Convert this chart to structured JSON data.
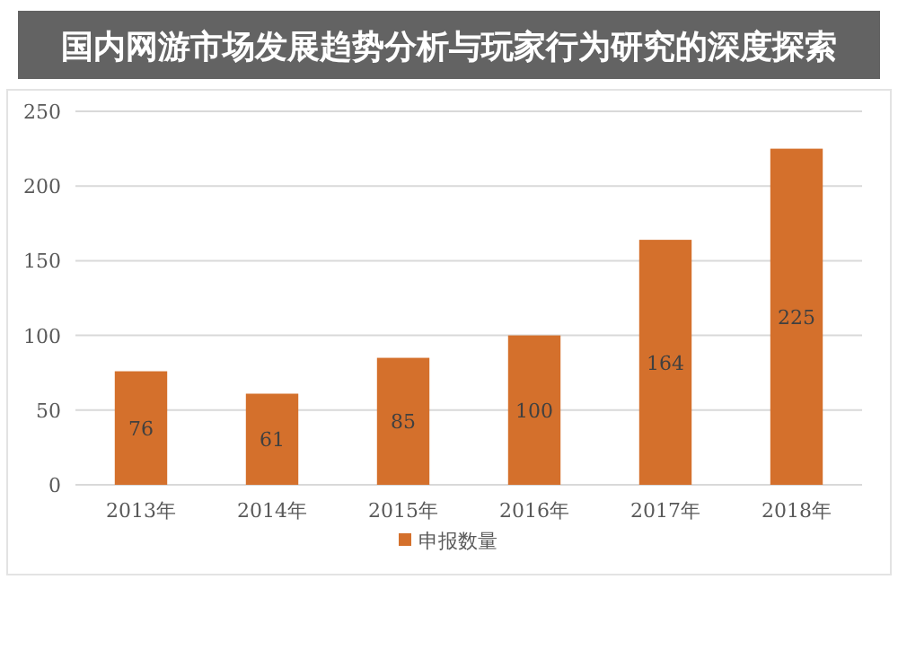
{
  "chart_data": {
    "type": "bar",
    "title": "国内网游市场发展趋势分析与玩家行为研究的深度探索",
    "categories": [
      "2013年",
      "2014年",
      "2015年",
      "2016年",
      "2017年",
      "2018年"
    ],
    "series": [
      {
        "name": "申报数量",
        "color": "#d4702c",
        "values": [
          76,
          61,
          85,
          100,
          164,
          225
        ]
      }
    ],
    "ylim": [
      0,
      250
    ],
    "yticks": [
      0,
      50,
      100,
      150,
      200,
      250
    ],
    "grid": "y",
    "legend": "bottom",
    "data_labels": true
  }
}
